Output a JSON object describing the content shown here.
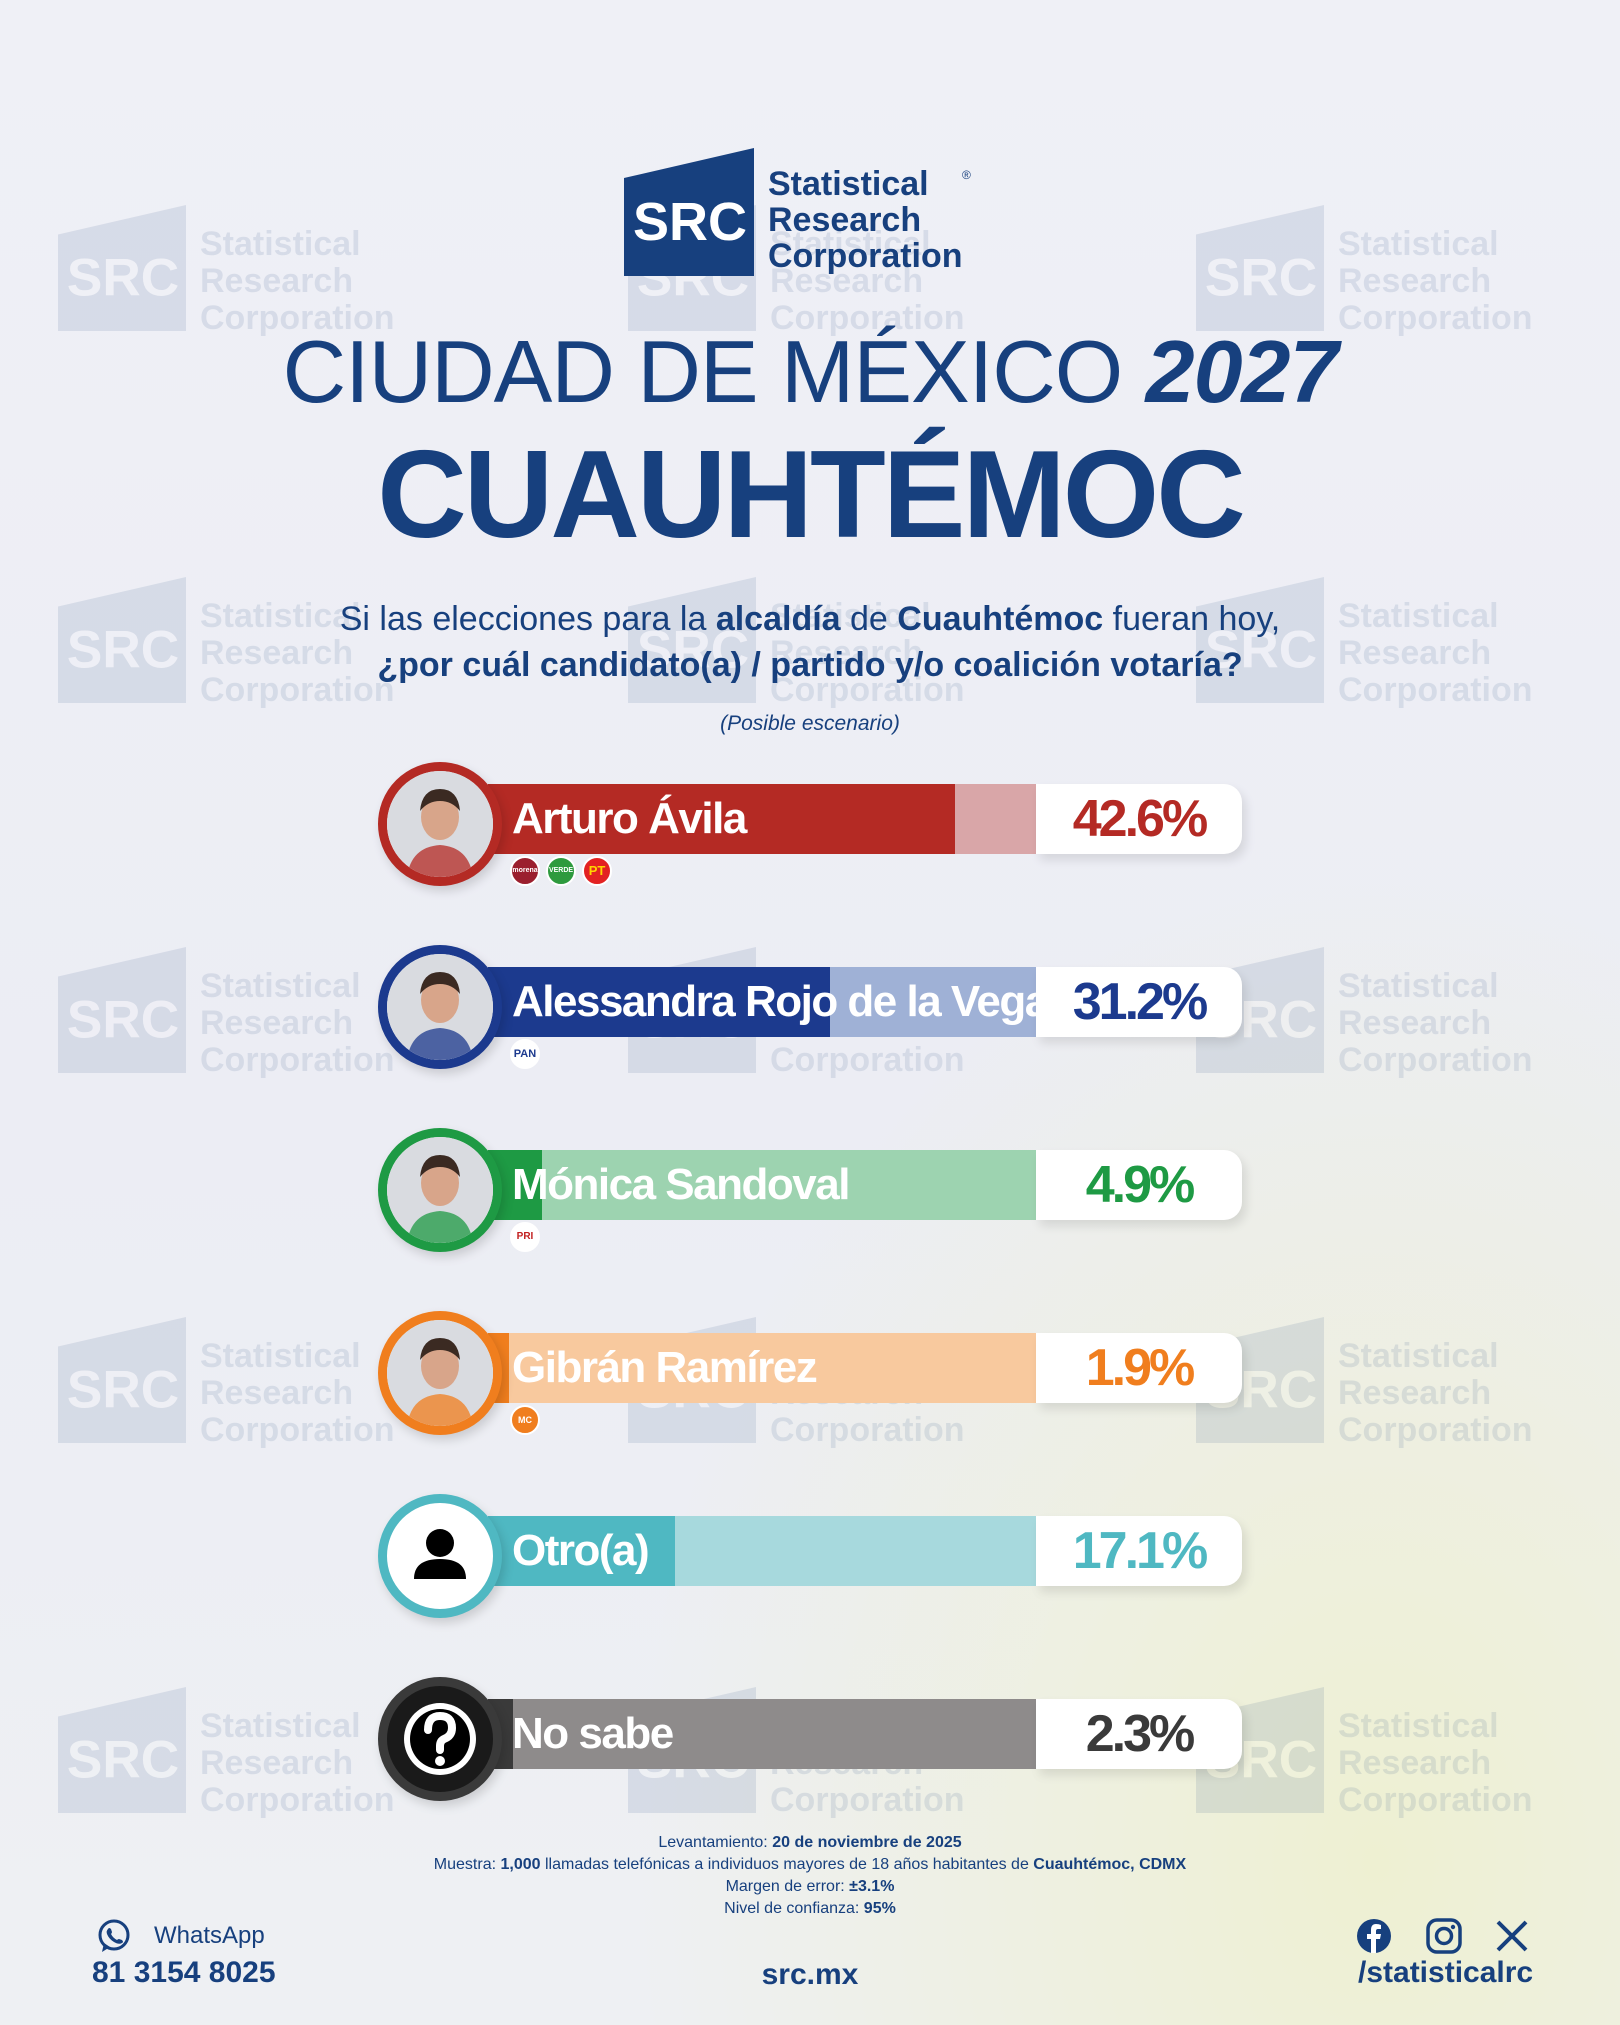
{
  "brand": {
    "mark": "SRC",
    "words": [
      "Statistical",
      "Research",
      "Corporation"
    ],
    "registered": "®",
    "watermark_text": "Statistical\nResearch\nCorporation"
  },
  "title": {
    "line1": "CIUDAD DE MÉXICO",
    "year": "2027",
    "line2": "CUAUHTÉMOC"
  },
  "question": {
    "p1": "Si las elecciones para la ",
    "b1": "alcaldía",
    "p2": " de ",
    "b2": "Cuauhtémoc",
    "p3": " fueran hoy,",
    "line2": "¿por cuál candidato(a) / partido y/o coalición votaría?",
    "note": "(Posible escenario)"
  },
  "chart_data": {
    "type": "bar",
    "categories": [
      "Arturo Ávila",
      "Alessandra Rojo de la Vega",
      "Mónica Sandoval",
      "Gibrán Ramírez",
      "Otro(a)",
      "No sabe"
    ],
    "series": [
      {
        "values": [
          42.6,
          31.2,
          4.9,
          1.9,
          17.1,
          2.3
        ]
      }
    ],
    "labels": [
      "42.6%",
      "31.2%",
      "4.9%",
      "1.9%",
      "17.1%",
      "2.3%"
    ],
    "colors": [
      "#b42a24",
      "#1c3a8e",
      "#1e9a44",
      "#f07e1e",
      "#4fb8c2",
      "#3a3a3a"
    ],
    "light_colors": [
      "#d9a6a8",
      "#9fb1d6",
      "#9dd3b0",
      "#f8c99e",
      "#a7d9dd",
      "#8e8b8b"
    ],
    "party_badges": [
      [
        "morena",
        "VERDE",
        "PT"
      ],
      [
        "PAN"
      ],
      [
        "PRI"
      ],
      [
        "MC"
      ],
      [],
      []
    ],
    "icons": [
      "",
      "",
      "",
      "",
      "person-icon",
      "question-icon"
    ]
  },
  "footer": {
    "lev_label": "Levantamiento: ",
    "lev_value": "20 de noviembre de 2025",
    "muestra_label": "Muestra: ",
    "muestra_n": "1,000",
    "muestra_mid": " llamadas telefónicas a individuos mayores de 18 años habitantes de ",
    "muestra_place": "Cuauhtémoc, CDMX",
    "margen_label": "Margen de error: ",
    "margen_value": "±3.1%",
    "nivel_label": "Nivel de confianza: ",
    "nivel_value": "95%",
    "whatsapp_label": "WhatsApp",
    "whatsapp_number": "81 3154 8025",
    "site": "src.mx",
    "handle": "/statisticalrc"
  }
}
